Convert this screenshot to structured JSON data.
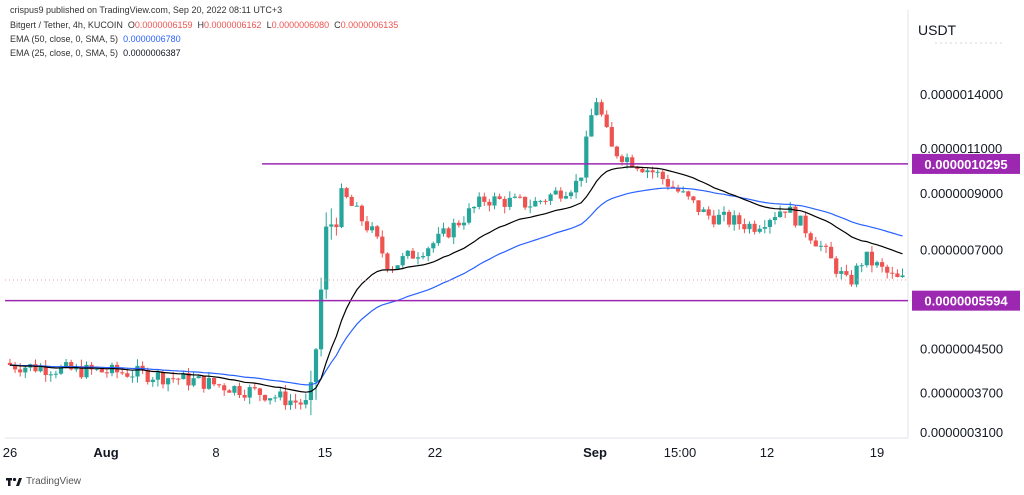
{
  "header": {
    "published": "crispus9 published on TradingView.com, Sep 20, 2022 08:11 UTC+3",
    "symbol": "Bitgert / Tether, 4h, KUCOIN",
    "o_label": "O",
    "o_val": "0.0000006159",
    "h_label": "H",
    "h_val": "0.0000006162",
    "l_label": "L",
    "l_val": "0.0000006080",
    "c_label": "C",
    "c_val": "0.0000006135",
    "ema50_label": "EMA (50, close, 0, SMA, 5)",
    "ema50_val": "0.0000006780",
    "ema25_label": "EMA (25, close, 0, SMA, 5)",
    "ema25_val": "0.0000006387"
  },
  "currency": "USDT",
  "branding": "TradingView",
  "colors": {
    "up": "#26a69a",
    "down": "#ef5350",
    "ema50": "#2962ff",
    "ema25": "#000000",
    "level": "#9c27b0",
    "level_label_bg": "#9c27b0"
  },
  "chart_data": {
    "type": "candlestick",
    "symbol": "Bitgert / Tether",
    "timeframe": "4h",
    "exchange": "KUCOIN",
    "y_scale": "log",
    "y_ticks": [
      "0.0000014000",
      "0.0000011000",
      "0.0000009000",
      "0.0000007000",
      "0.0000004500",
      "0.0000003700",
      "0.0000003100"
    ],
    "y_tick_values": [
      1.4e-06,
      1.1e-06,
      9e-07,
      7e-07,
      4.5e-07,
      3.7e-07,
      3.1e-07
    ],
    "x_ticks": [
      "26",
      "Aug",
      "8",
      "15",
      "22",
      "Sep",
      "15:00",
      "12",
      "19"
    ],
    "x_tick_bold": [
      false,
      true,
      false,
      false,
      false,
      true,
      false,
      false,
      false
    ],
    "levels": [
      {
        "value": 1.0295e-06,
        "label": "0.0000010295"
      },
      {
        "value": 5.594e-07,
        "label": "0.0000005594"
      }
    ],
    "last_price": 6.135e-07,
    "price_path": [
      {
        "date": "2022-07-26",
        "close": 4.2e-07
      },
      {
        "date": "2022-07-30",
        "close": 4.1e-07
      },
      {
        "date": "2022-08-03",
        "close": 4.05e-07
      },
      {
        "date": "2022-08-07",
        "close": 3.9e-07
      },
      {
        "date": "2022-08-11",
        "close": 3.7e-07
      },
      {
        "date": "2022-08-14",
        "close": 3.5e-07
      },
      {
        "date": "2022-08-15",
        "close": 7.5e-07
      },
      {
        "date": "2022-08-16",
        "close": 9e-07
      },
      {
        "date": "2022-08-18",
        "close": 7.5e-07
      },
      {
        "date": "2022-08-19",
        "close": 6.5e-07
      },
      {
        "date": "2022-08-22",
        "close": 7.3e-07
      },
      {
        "date": "2022-08-25",
        "close": 8.8e-07
      },
      {
        "date": "2022-08-28",
        "close": 8.6e-07
      },
      {
        "date": "2022-08-31",
        "close": 9.5e-07
      },
      {
        "date": "2022-09-01",
        "close": 1.4e-06
      },
      {
        "date": "2022-09-02",
        "close": 1.1e-06
      },
      {
        "date": "2022-09-05",
        "close": 9.8e-07
      },
      {
        "date": "2022-09-08",
        "close": 8.2e-07
      },
      {
        "date": "2022-09-11",
        "close": 7.8e-07
      },
      {
        "date": "2022-09-13",
        "close": 8.5e-07
      },
      {
        "date": "2022-09-15",
        "close": 7.3e-07
      },
      {
        "date": "2022-09-17",
        "close": 6e-07
      },
      {
        "date": "2022-09-18",
        "close": 6.8e-07
      },
      {
        "date": "2022-09-20",
        "close": 6.135e-07
      }
    ]
  }
}
